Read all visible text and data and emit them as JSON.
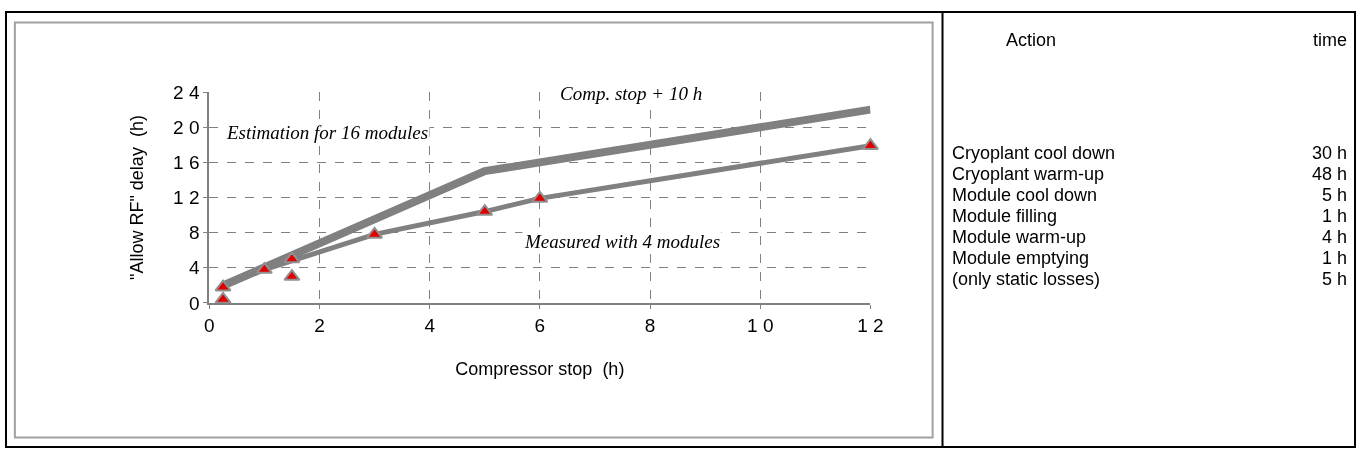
{
  "chart_data": [
    {
      "type": "line",
      "xlabel": "Compressor stop  (h)",
      "ylabel": "\"Allow RF\" delay  (h)",
      "xlim": [
        0,
        12
      ],
      "xticks": [
        0,
        2,
        4,
        6,
        8,
        {
          "value": 10,
          "label": "1 0"
        },
        {
          "value": 12,
          "label": "1 2"
        }
      ],
      "ylim": [
        0,
        24
      ],
      "yticks": [
        0,
        4,
        8,
        {
          "value": 12,
          "label": "1 2"
        },
        {
          "value": 16,
          "label": "1 6"
        },
        {
          "value": 20,
          "label": "2 0"
        },
        {
          "value": 24,
          "label": "2 4"
        }
      ],
      "grid": true,
      "series": [
        {
          "type": "line",
          "color": "#808080",
          "marker": "none",
          "x": [
            0.25,
            5,
            6,
            12
          ],
          "values": [
            2,
            15,
            16,
            22
          ]
        },
        {
          "type": "line",
          "color": "#808080",
          "marker": "triangle",
          "x": [
            0.25,
            1,
            3,
            5,
            6,
            12
          ],
          "values": [
            1.8,
            3.8,
            7.8,
            10.4,
            11.9,
            17.9
          ]
        },
        {
          "type": "scatter",
          "color": "#e00000",
          "marker": "triangle",
          "x": [
            0.25,
            1.5,
            1.5
          ],
          "values": [
            0.4,
            3,
            5
          ]
        }
      ],
      "annotations": [
        "Comp. stop + 10 h",
        "Estimation for 16 modules",
        "Measured with 4 modules"
      ]
    },
    {
      "type": "other",
      "annotations": [
        "Action",
        "time",
        "Cryoplant cool down",
        "30 h",
        "Cryoplant warm-up",
        "48 h",
        "Module cool down",
        "5 h",
        "Module filling",
        "1 h",
        "Module warm-up",
        "4 h",
        "Module emptying",
        "1 h",
        "(only static losses)",
        "5 h"
      ]
    }
  ]
}
